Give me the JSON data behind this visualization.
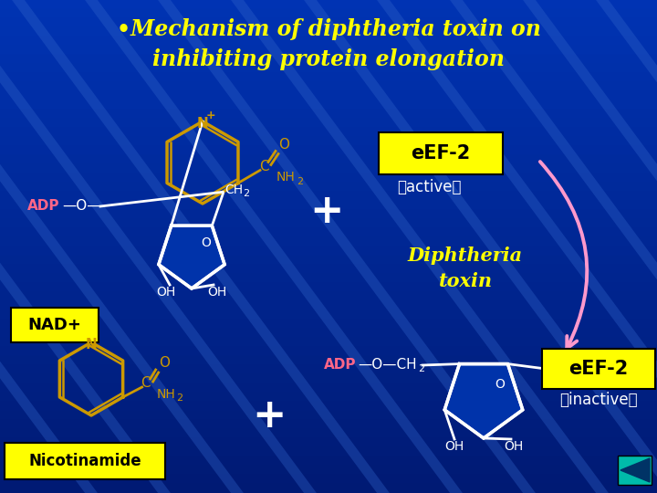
{
  "title_line1": "•Mechanism of diphtheria toxin on",
  "title_line2": "inhibiting protein elongation",
  "title_color": "#FFFF00",
  "bg_color": "#0055BB",
  "nad_label": "NAD+",
  "nad_box_color": "#FFFF00",
  "nad_box_text_color": "#000000",
  "nicotinamide_label": "Nicotinamide",
  "nicotinamide_box_color": "#FFFF00",
  "nicotinamide_box_text_color": "#000000",
  "eef2_active_label": "eEF-2",
  "eef2_active_sub": "（active）",
  "eef2_inactive_label": "eEF-2",
  "eef2_inactive_sub": "（inactive）",
  "eef2_box_color": "#FFFF00",
  "eef2_text_color": "#000000",
  "diphtheria_label": "Diphtheria\ntoxin",
  "diphtheria_color": "#FFFF00",
  "plus_color": "#FFFFFF",
  "adp_color": "#FF6688",
  "structure_color": "#FFFFFF",
  "ring_color": "#CC9900",
  "arrow_color": "#FF99CC",
  "teal_color": "#00BBAA",
  "ribose_fill": "#0033AA"
}
